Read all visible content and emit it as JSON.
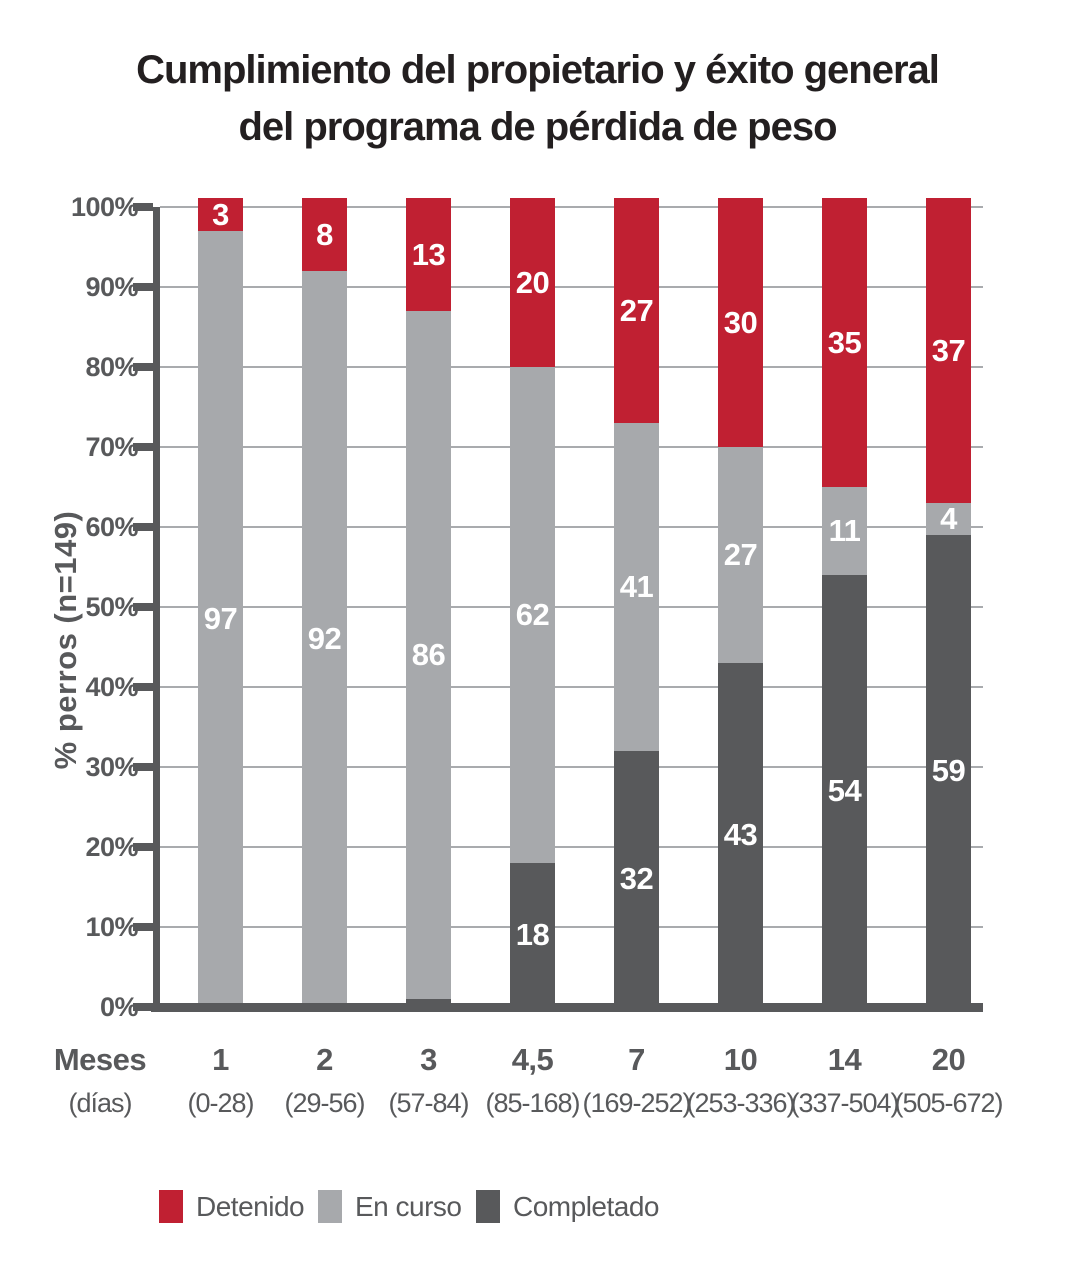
{
  "title": {
    "line1": "Cumplimiento del propietario y éxito general",
    "line2": "del programa de pérdida de peso"
  },
  "y_axis": {
    "label": "% perros (n=149)",
    "ticks": [
      "100%",
      "90%",
      "80%",
      "70%",
      "60%",
      "50%",
      "40%",
      "30%",
      "20%",
      "10%",
      "0%"
    ]
  },
  "x_axis": {
    "months_header": "Meses",
    "days_header": "(días)"
  },
  "legend": [
    {
      "label": "Detenido",
      "color": "#C02032"
    },
    {
      "label": "En curso",
      "color": "#A7A9AC"
    },
    {
      "label": "Completado",
      "color": "#58595B"
    }
  ],
  "colors": {
    "detenido": "#C02032",
    "en_curso": "#A7A9AC",
    "completado": "#58595B",
    "grid": "#A9ABAE",
    "axis": "#58595B"
  },
  "chart_data": {
    "type": "bar",
    "stacked": true,
    "title": "Cumplimiento del propietario y éxito general del programa de pérdida de peso",
    "ylabel": "% perros (n=149)",
    "xlabel": "Meses (días)",
    "ylim": [
      0,
      100
    ],
    "grid": true,
    "legend_position": "bottom",
    "categories": [
      "1",
      "2",
      "3",
      "4,5",
      "7",
      "10",
      "14",
      "20"
    ],
    "categories_days": [
      "(0-28)",
      "(29-56)",
      "(57-84)",
      "(85-168)",
      "(169-252)",
      "(253-336)",
      "(337-504)",
      "(505-672)"
    ],
    "series": [
      {
        "name": "Detenido",
        "color": "#C02032",
        "values": [
          3,
          8,
          13,
          20,
          27,
          30,
          35,
          37
        ]
      },
      {
        "name": "En curso",
        "color": "#A7A9AC",
        "values": [
          97,
          92,
          86,
          62,
          41,
          27,
          11,
          4
        ]
      },
      {
        "name": "Completado",
        "color": "#58595B",
        "values": [
          0,
          0,
          1,
          18,
          32,
          43,
          54,
          59
        ]
      }
    ]
  }
}
